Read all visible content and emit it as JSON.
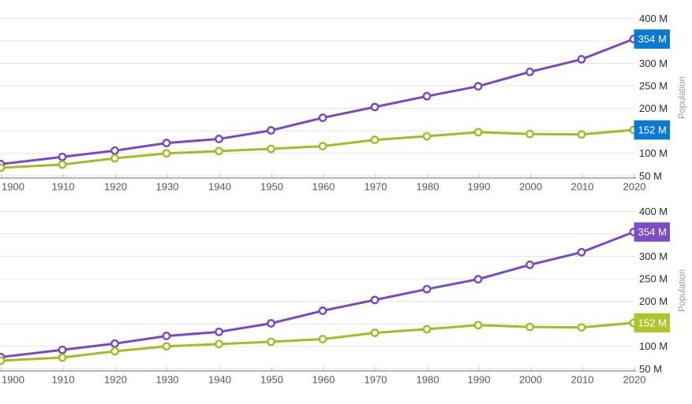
{
  "chart_data": [
    {
      "type": "line",
      "panel": "top",
      "title": "",
      "xlabel": "",
      "ylabel": "Population",
      "x": [
        1900,
        1910,
        1920,
        1930,
        1940,
        1950,
        1960,
        1970,
        1980,
        1990,
        2000,
        2010,
        2020
      ],
      "ylim": [
        50,
        400
      ],
      "y_ticks": [
        400,
        350,
        300,
        250,
        200,
        150,
        100,
        50
      ],
      "y_tick_suffix": " M",
      "grid": "horizontal-only",
      "legend_position": "none",
      "series": [
        {
          "name": "purple-series",
          "color": "#7A48C0",
          "values": [
            76,
            92,
            106,
            123,
            132,
            151,
            179,
            203,
            227,
            249,
            281,
            309,
            354
          ],
          "final_value_label": "354 M",
          "final_badge_color": "#0A79D6",
          "final_badge_text_color": "#FFFFFF"
        },
        {
          "name": "green-series",
          "color": "#A6BA27",
          "values": [
            68,
            75,
            89,
            100,
            105,
            110,
            116,
            130,
            138,
            147,
            143,
            142,
            152
          ],
          "final_value_label": "152 M",
          "final_badge_color": "#0A79D6",
          "final_badge_text_color": "#FFFFFF"
        }
      ]
    },
    {
      "type": "line",
      "panel": "bottom",
      "title": "",
      "xlabel": "",
      "ylabel": "Population",
      "x": [
        1900,
        1910,
        1920,
        1930,
        1940,
        1950,
        1960,
        1970,
        1980,
        1990,
        2000,
        2010,
        2020
      ],
      "ylim": [
        50,
        400
      ],
      "y_ticks": [
        400,
        350,
        300,
        250,
        200,
        150,
        100,
        50
      ],
      "y_tick_suffix": " M",
      "grid": "horizontal-only",
      "legend_position": "none",
      "series": [
        {
          "name": "purple-series",
          "color": "#7A48C0",
          "values": [
            76,
            92,
            106,
            123,
            132,
            151,
            179,
            203,
            227,
            249,
            281,
            309,
            354
          ],
          "final_value_label": "354 M",
          "final_badge_color": "#7C4EC3",
          "final_badge_text_color": "#FFFFFF"
        },
        {
          "name": "green-series",
          "color": "#A6BA27",
          "values": [
            68,
            75,
            89,
            100,
            105,
            110,
            116,
            130,
            138,
            147,
            143,
            142,
            152
          ],
          "final_value_label": "152 M",
          "final_badge_color": "#B0C42E",
          "final_badge_text_color": "#FFFFFF"
        }
      ]
    }
  ],
  "colors": {
    "background": "#FFFFFF",
    "gridline": "#E3E3E3",
    "axis_line": "#6B6B6B",
    "tick_mark": "#CDCDCD",
    "x_tick_label": "#585858",
    "y_tick_label": "#2B2B2B",
    "axis_title": "#9B9B9B",
    "marker_fill": "#FFFFFF"
  }
}
